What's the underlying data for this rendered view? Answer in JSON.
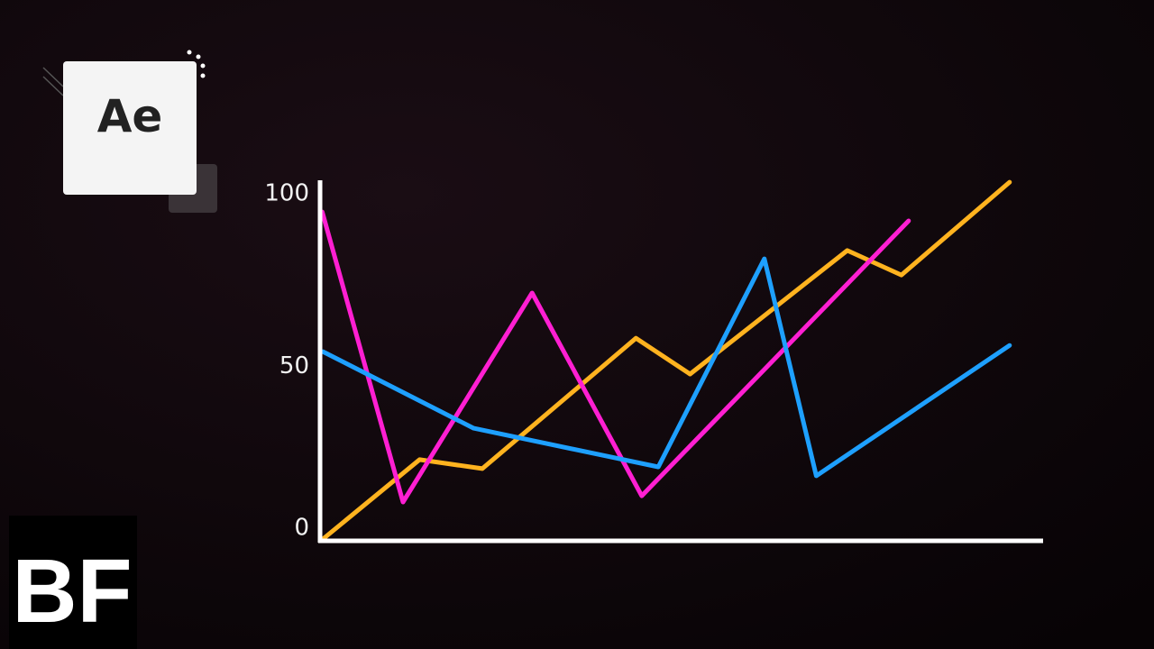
{
  "brand": {
    "app_icon": "Ae",
    "channel": "BF"
  },
  "chart_data": {
    "type": "line",
    "xlim": [
      0,
      100
    ],
    "ylim": [
      0,
      105
    ],
    "yticks": [
      0,
      50,
      100
    ],
    "series": [
      {
        "color": "#ffb31f",
        "x": [
          0.4,
          13.8,
          22.5,
          43.8,
          51.3,
          73.1,
          80.6,
          95.6
        ],
        "values": [
          0,
          23,
          20.4,
          58.2,
          47.8,
          83.6,
          76.5,
          103.4
        ]
      },
      {
        "color": "#ff1fd2",
        "x": [
          0.3,
          11.5,
          29.4,
          44.6,
          81.6
        ],
        "values": [
          94.8,
          10.7,
          71.3,
          12.5,
          92.2
        ]
      },
      {
        "color": "#1ea0ff",
        "x": [
          0.4,
          21.3,
          46.9,
          61.6,
          68.8,
          95.6
        ],
        "values": [
          54.3,
          32.1,
          20.9,
          81.2,
          18.3,
          56.1
        ]
      }
    ]
  }
}
